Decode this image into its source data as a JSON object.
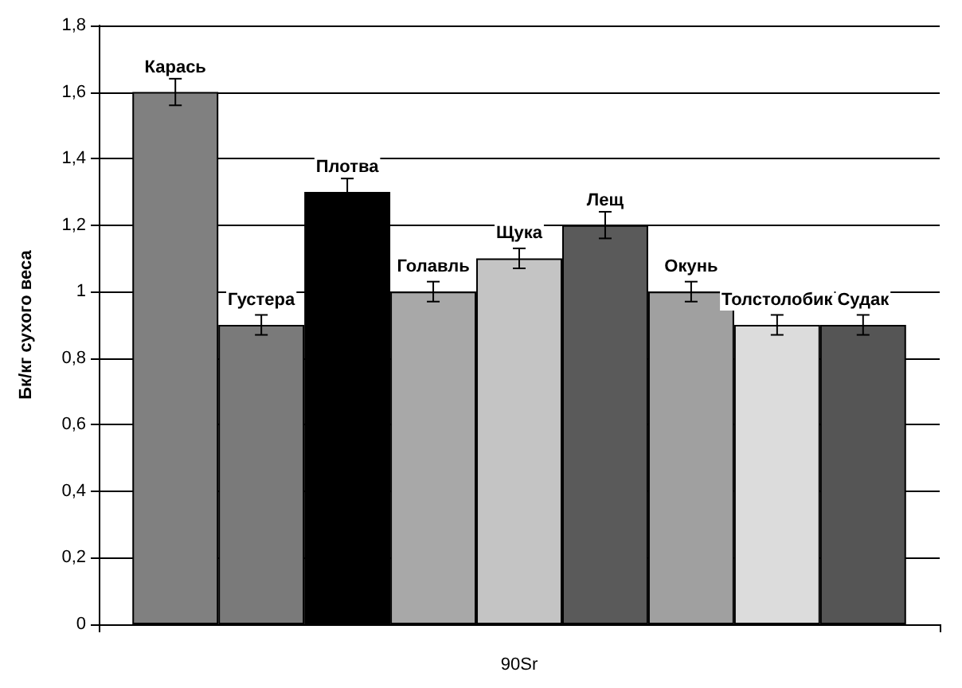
{
  "chart_data": {
    "type": "bar",
    "ylabel": "Бк/кг сухого веса",
    "categories": [
      "90Sr"
    ],
    "series": [
      {
        "name": "Карась",
        "color": "#808080",
        "values": [
          1.6
        ],
        "errors": [
          0.04
        ]
      },
      {
        "name": "Густера",
        "color": "#7a7a7a",
        "values": [
          0.9
        ],
        "errors": [
          0.03
        ]
      },
      {
        "name": "Плотва",
        "color": "#000000",
        "values": [
          1.3
        ],
        "errors": [
          0.04
        ]
      },
      {
        "name": "Голавль",
        "color": "#a8a8a8",
        "values": [
          1.0
        ],
        "errors": [
          0.03
        ]
      },
      {
        "name": "Щука",
        "color": "#c4c4c4",
        "values": [
          1.1
        ],
        "errors": [
          0.03
        ]
      },
      {
        "name": "Лещ",
        "color": "#5a5a5a",
        "values": [
          1.2
        ],
        "errors": [
          0.04
        ]
      },
      {
        "name": "Окунь",
        "color": "#a0a0a0",
        "values": [
          1.0
        ],
        "errors": [
          0.03
        ]
      },
      {
        "name": "Толстолобик",
        "color": "#dcdcdc",
        "values": [
          0.9
        ],
        "errors": [
          0.03
        ]
      },
      {
        "name": "Судак",
        "color": "#555555",
        "values": [
          0.9
        ],
        "errors": [
          0.03
        ]
      }
    ],
    "ylim": [
      0,
      1.8
    ],
    "yticks": [
      0,
      {
        "value": 0.2,
        "label": "0,2"
      },
      {
        "value": 0.4,
        "label": "0,4"
      },
      {
        "value": 0.6,
        "label": "0,6"
      },
      {
        "value": 0.8,
        "label": "0,8"
      },
      1,
      {
        "value": 1.2,
        "label": "1,2"
      },
      {
        "value": 1.4,
        "label": "1,4"
      },
      {
        "value": 1.6,
        "label": "1,6"
      },
      {
        "value": 1.8,
        "label": "1,8"
      }
    ],
    "grid": "y",
    "legend": false
  }
}
